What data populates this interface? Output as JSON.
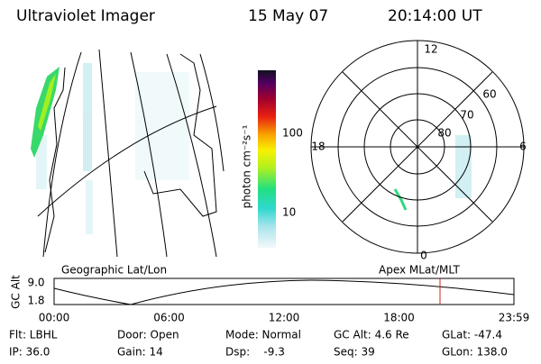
{
  "header": {
    "instrument": "Ultraviolet Imager",
    "date": "15 May 07",
    "time": "20:14:00 UT"
  },
  "map_panel": {
    "label": "Geographic Lat/Lon"
  },
  "colorbar": {
    "label": "photon cm⁻²s⁻¹",
    "ticks": [
      "100",
      "10"
    ]
  },
  "polar_panel": {
    "label": "Apex MLat/MLT",
    "mlt_labels": [
      "12",
      "18",
      "6",
      "0"
    ],
    "mlat_labels": [
      "60",
      "70",
      "80"
    ]
  },
  "altitude_plot": {
    "axis_label": "GC Alt",
    "y_ticks": [
      "9.0",
      "1.8"
    ],
    "x_ticks": [
      "00:00",
      "06:00",
      "12:00",
      "18:00",
      "23:59"
    ]
  },
  "status": [
    [
      "Flt: LBHL",
      "IP: 36.0"
    ],
    [
      "Door: Open",
      "Gain: 14"
    ],
    [
      "Mode: Normal",
      "Dsp:    -9.3"
    ],
    [
      "GC Alt: 4.6 Re",
      "Seq: 39"
    ],
    [
      "GLat: -47.4",
      "GLon: 138.0"
    ]
  ]
}
